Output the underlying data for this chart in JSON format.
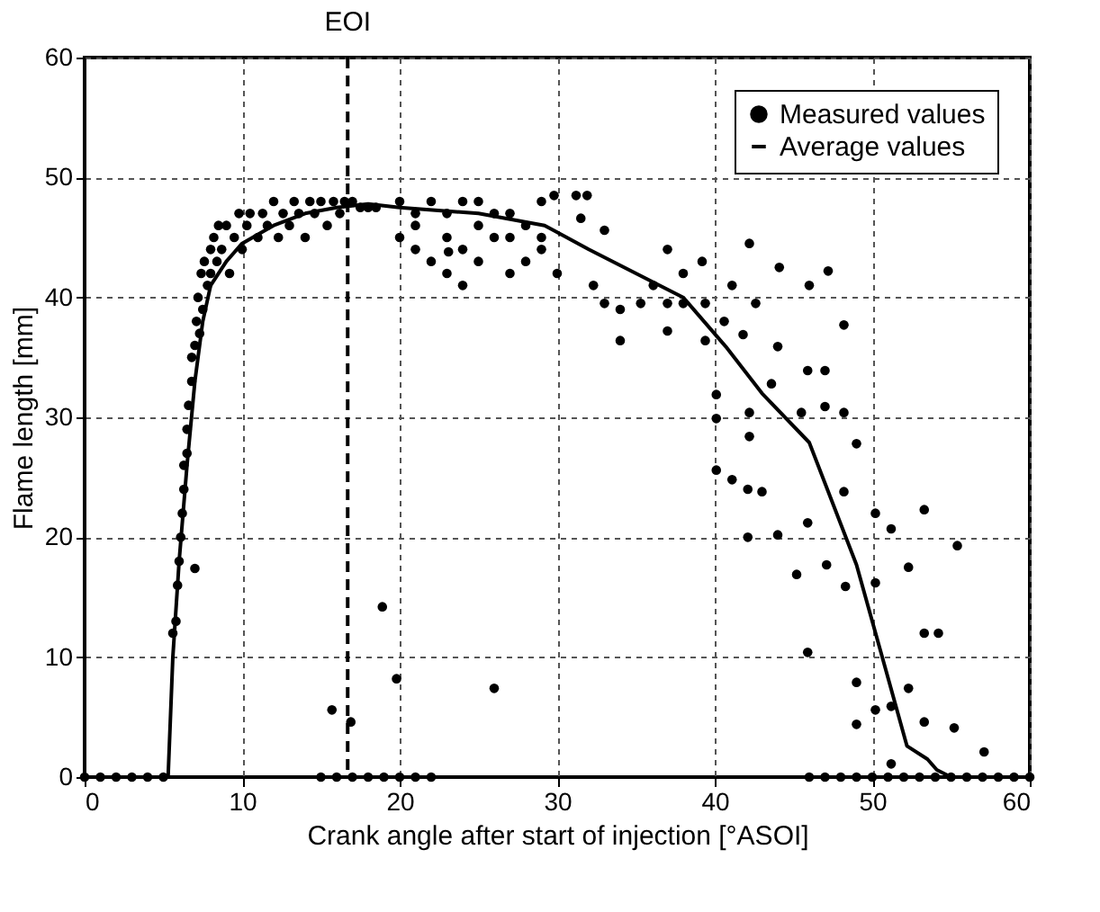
{
  "chart_data": {
    "type": "scatter",
    "xlabel": "Crank angle after start of injection [°ASOI]",
    "ylabel": "Flame length [mm]",
    "xlim": [
      0,
      60
    ],
    "ylim": [
      0,
      60
    ],
    "xticks": [
      0,
      10,
      20,
      30,
      40,
      50,
      60
    ],
    "yticks": [
      0,
      10,
      20,
      30,
      40,
      50,
      60
    ],
    "grid": true,
    "legend": "top right",
    "ref_lines": [
      {
        "axis": "x",
        "value": 16.7,
        "label": "EOI",
        "color": "#000000",
        "line_style": "dashed"
      }
    ],
    "series": [
      {
        "name": "Measured values",
        "marker": "circle",
        "color": "#000000",
        "x": [
          0,
          1,
          2,
          3,
          4,
          5,
          5.6,
          5.8,
          5.9,
          6.0,
          6.1,
          6.2,
          6.3,
          6.3,
          6.5,
          6.5,
          6.6,
          6.8,
          6.8,
          7.0,
          7.1,
          7.2,
          7.3,
          7.4,
          7.5,
          7.6,
          7.8,
          8.0,
          8.0,
          8.2,
          8.4,
          8.5,
          8.7,
          9.0,
          9.2,
          9.5,
          9.8,
          10.0,
          10.3,
          10.5,
          11,
          11.3,
          11.6,
          12,
          12.3,
          12.6,
          13,
          13.3,
          13.6,
          14,
          14.3,
          14.6,
          15,
          15.4,
          15.8,
          16.2,
          16.5,
          17,
          17.5,
          18,
          18.5,
          7.0,
          18.9,
          15.7,
          16.9,
          19.8,
          26,
          24,
          23.1,
          15,
          16,
          17,
          18,
          19,
          20,
          21,
          22,
          20,
          20,
          21,
          21,
          21,
          22,
          22,
          23,
          23,
          23,
          24,
          24,
          25,
          25,
          25,
          26,
          26,
          27,
          27,
          27,
          28,
          28,
          29,
          29,
          29,
          29.8,
          31.2,
          31.9,
          34.0,
          37.0,
          39.2,
          42.2,
          44.1,
          47.2,
          46.0,
          48.2,
          40.1,
          40.1,
          42.2,
          42.2,
          40.1,
          41.1,
          42.1,
          43.0,
          42.1,
          44.0,
          45.2,
          47.1,
          48.3,
          50.2,
          50.2,
          51.2,
          53.3,
          52.3,
          55.4,
          45.9,
          49.0,
          53.3,
          54.2,
          52.3,
          49.0,
          50.2,
          51.2,
          53.3,
          55.2,
          57.1,
          51.2,
          45.9,
          48.2,
          49.0,
          45.5,
          47.0,
          48.2,
          45.9,
          47.0,
          43.6,
          44.0,
          41.8,
          42.6,
          40.6,
          41.1,
          39.4,
          39.4,
          38.0,
          38.0,
          37.0,
          37.0,
          36.1,
          35.3,
          34.0,
          33.0,
          33.0,
          31.5,
          30.0,
          32.3,
          46,
          47,
          48,
          49,
          50,
          51,
          52,
          53,
          54,
          55,
          56,
          57,
          58,
          59,
          60
        ],
        "values": [
          0,
          0,
          0,
          0,
          0,
          0,
          12,
          13,
          16,
          18,
          20,
          22,
          24,
          26,
          27,
          29,
          31,
          33,
          35,
          36,
          38,
          40,
          37,
          42,
          39,
          43,
          41,
          44,
          42,
          45,
          43,
          46,
          44,
          46,
          42,
          45,
          47,
          44,
          46,
          47,
          45,
          47,
          46,
          48,
          45,
          47,
          46,
          48,
          47,
          45,
          48,
          47,
          48,
          46,
          48,
          47,
          48,
          48,
          47.5,
          47.5,
          47.5,
          17.4,
          14.2,
          5.6,
          4.6,
          8.2,
          7.4,
          41,
          43.8,
          0,
          0,
          0,
          0,
          0,
          0,
          0,
          0,
          48,
          45,
          47,
          44,
          46,
          48,
          43,
          47,
          45,
          42,
          48,
          44,
          46,
          43,
          48,
          47,
          45,
          42,
          47,
          45,
          43,
          46,
          44,
          48,
          45,
          48.5,
          48.5,
          48.5,
          36.4,
          37.2,
          43.0,
          44.5,
          42.5,
          42.2,
          41.0,
          37.7,
          31.9,
          29.9,
          30.4,
          28.4,
          25.6,
          24.8,
          24.0,
          23.8,
          20.0,
          20.2,
          16.9,
          17.7,
          15.9,
          16.2,
          22.0,
          20.7,
          22.3,
          17.5,
          19.3,
          10.4,
          7.9,
          12.0,
          12.0,
          7.4,
          4.4,
          5.6,
          5.9,
          4.6,
          4.1,
          2.1,
          1.1,
          21.2,
          23.8,
          27.8,
          30.4,
          30.9,
          30.4,
          33.9,
          33.9,
          32.8,
          35.9,
          36.9,
          39.5,
          38.0,
          41.0,
          39.5,
          36.4,
          39.5,
          42.0,
          39.5,
          44.0,
          41.0,
          39.5,
          39.0,
          39.5,
          45.6,
          46.6,
          42.0,
          41.0,
          0,
          0,
          0,
          0,
          0,
          0,
          0,
          0,
          0,
          0,
          0,
          0,
          0,
          0,
          0
        ]
      },
      {
        "name": "Average values",
        "type": "line",
        "marker": "none",
        "color": "#000000",
        "x": [
          0,
          5.3,
          5.6,
          6,
          6.5,
          7,
          7.5,
          8,
          9,
          10,
          12,
          14,
          16,
          18,
          20,
          25,
          29.2,
          32,
          35,
          38,
          40.7,
          43,
          46,
          49,
          50.7,
          52.2,
          53.5,
          54.1,
          55,
          56
        ],
        "values": [
          0,
          0,
          10,
          18,
          26,
          33,
          38,
          41,
          43,
          44.5,
          46,
          47,
          47.5,
          47.8,
          47.5,
          47,
          46,
          44,
          42,
          40,
          35.9,
          32,
          27.9,
          17.7,
          9.7,
          2.6,
          1.5,
          0.6,
          0,
          0
        ]
      }
    ]
  }
}
